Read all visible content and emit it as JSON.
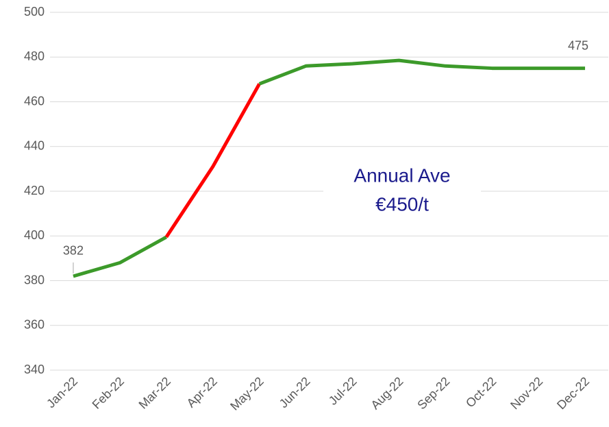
{
  "chart_data": {
    "type": "line",
    "categories": [
      "Jan-22",
      "Feb-22",
      "Mar-22",
      "Apr-22",
      "May-22",
      "Jun-22",
      "Jul-22",
      "Aug-22",
      "Sep-22",
      "Oct-22",
      "Nov-22",
      "Dec-22"
    ],
    "values": [
      382,
      388,
      399.5,
      431,
      468,
      476,
      477,
      478.5,
      476,
      475,
      475,
      475
    ],
    "value_labels": [
      "382",
      null,
      null,
      null,
      null,
      null,
      null,
      null,
      null,
      null,
      null,
      "475"
    ],
    "segment_colors": [
      "#3c9a2a",
      "#3c9a2a",
      "#ff0000",
      "#ff0000",
      "#3c9a2a",
      "#3c9a2a",
      "#3c9a2a",
      "#3c9a2a",
      "#3c9a2a",
      "#3c9a2a",
      "#3c9a2a"
    ],
    "ylim": [
      340,
      500
    ],
    "yticks": [
      340,
      360,
      380,
      400,
      420,
      440,
      460,
      480,
      500
    ],
    "grid": true,
    "annotation": [
      "Annual Ave",
      "€450/t"
    ],
    "annotation_color": "#1a1a8c"
  }
}
